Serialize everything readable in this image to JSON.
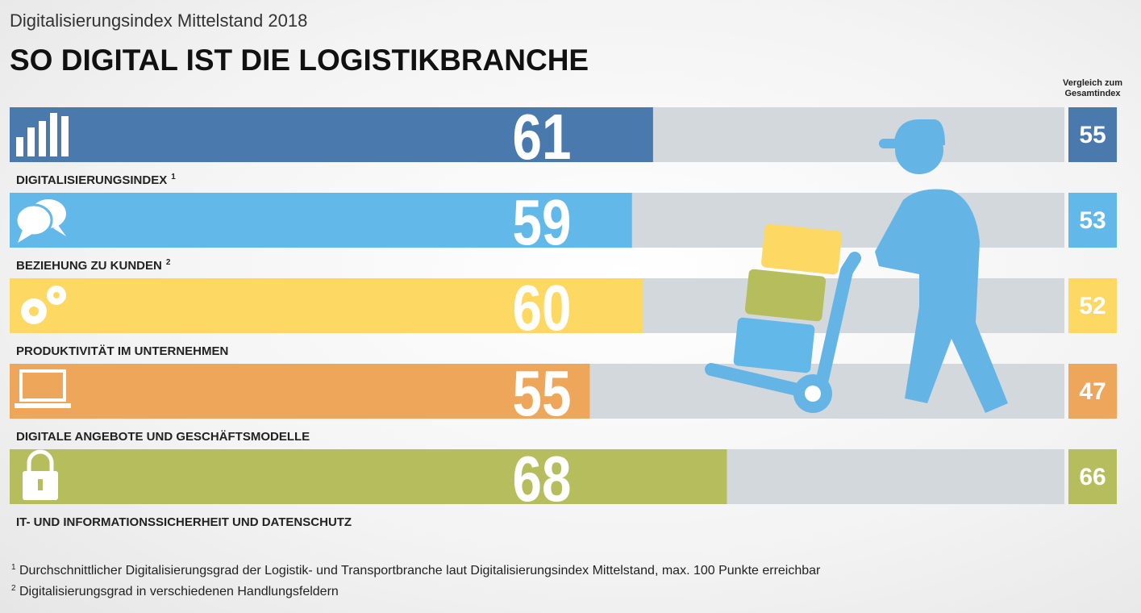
{
  "chart_data": {
    "type": "bar",
    "subtitle": "Digitalisierungsindex Mittelstand 2018",
    "title": "SO DIGITAL IST DIE LOGISTIKBRANCHE",
    "comparison_label": "Vergleich zum Gesamtindex",
    "categories": [
      "DIGITALISIERUNGSINDEX",
      "BEZIEHUNG ZU KUNDEN",
      "PRODUKTIVITÄT IM UNTERNEHMEN",
      "DIGITALE ANGEBOTE UND GESCHÄFTSMODELLE",
      "IT- UND INFORMATIONSSICHERHEIT UND DATENSCHUTZ"
    ],
    "category_marks": [
      "1",
      "2",
      null,
      null,
      null
    ],
    "values": [
      61,
      59,
      60,
      55,
      68
    ],
    "comparison_values": [
      55,
      53,
      52,
      47,
      66
    ],
    "colors": [
      "#4a7aad",
      "#62b8e8",
      "#fdd862",
      "#eea65a",
      "#b5bd5c"
    ],
    "track_color": "#d3d8dd",
    "xlim": [
      0,
      100
    ],
    "footnotes": [
      {
        "mark": "1",
        "text": "Durchschnittlicher Digitalisierungsgrad der Logistik- und Transportbranche laut Digitalisierungsindex Mittelstand, max. 100 Punkte erreichbar"
      },
      {
        "mark": "2",
        "text": "Digitalisierungsgrad in verschiedenen Handlungsfeldern"
      }
    ]
  }
}
